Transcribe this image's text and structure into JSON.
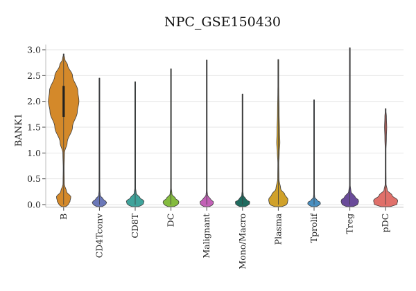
{
  "chart_data": {
    "type": "violin",
    "title": "NPC_GSE150430",
    "ylabel": "BANK1",
    "xlabel": "",
    "ylim": [
      -0.05,
      3.1
    ],
    "yticks": [
      "0.0",
      "0.5",
      "1.0",
      "1.5",
      "2.0",
      "2.5",
      "3.0"
    ],
    "ytick_values": [
      0,
      0.5,
      1.0,
      1.5,
      2.0,
      2.5,
      3.0
    ],
    "grid": true,
    "series": [
      {
        "name": "B",
        "color": "#d4892a",
        "max": 2.92,
        "profile": [
          [
            0,
            0.3
          ],
          [
            0.07,
            0.4
          ],
          [
            0.15,
            0.45
          ],
          [
            0.25,
            0.18
          ],
          [
            0.4,
            0.04
          ],
          [
            0.7,
            0.03
          ],
          [
            1.0,
            0.05
          ],
          [
            1.2,
            0.22
          ],
          [
            1.5,
            0.55
          ],
          [
            1.8,
            0.85
          ],
          [
            2.0,
            0.95
          ],
          [
            2.2,
            0.88
          ],
          [
            2.5,
            0.55
          ],
          [
            2.7,
            0.25
          ],
          [
            2.82,
            0.07
          ],
          [
            2.92,
            0.01
          ]
        ],
        "box": [
          1.7,
          2.3
        ]
      },
      {
        "name": "CD4Tconv",
        "color": "#6a77b8",
        "max": 2.45,
        "profile": [
          [
            0,
            0.4
          ],
          [
            0.05,
            0.45
          ],
          [
            0.1,
            0.25
          ],
          [
            0.18,
            0.05
          ],
          [
            0.3,
            0.015
          ],
          [
            1.0,
            0.008
          ],
          [
            2.45,
            0.004
          ]
        ]
      },
      {
        "name": "CD8T",
        "color": "#3fa39b",
        "max": 2.38,
        "profile": [
          [
            0,
            0.5
          ],
          [
            0.07,
            0.55
          ],
          [
            0.13,
            0.3
          ],
          [
            0.22,
            0.06
          ],
          [
            0.35,
            0.015
          ],
          [
            1.5,
            0.01
          ],
          [
            1.7,
            0.012
          ],
          [
            2.38,
            0.004
          ]
        ]
      },
      {
        "name": "DC",
        "color": "#84bb3e",
        "max": 2.63,
        "profile": [
          [
            0,
            0.45
          ],
          [
            0.06,
            0.5
          ],
          [
            0.12,
            0.28
          ],
          [
            0.2,
            0.06
          ],
          [
            0.35,
            0.015
          ],
          [
            1.0,
            0.008
          ],
          [
            2.63,
            0.004
          ]
        ]
      },
      {
        "name": "Malignant",
        "color": "#c261b6",
        "max": 2.8,
        "profile": [
          [
            0,
            0.4
          ],
          [
            0.05,
            0.42
          ],
          [
            0.11,
            0.22
          ],
          [
            0.18,
            0.05
          ],
          [
            0.3,
            0.012
          ],
          [
            1.5,
            0.006
          ],
          [
            2.8,
            0.003
          ]
        ]
      },
      {
        "name": "Mono/Macro",
        "color": "#1f6b5f",
        "max": 2.14,
        "profile": [
          [
            0,
            0.42
          ],
          [
            0.05,
            0.45
          ],
          [
            0.1,
            0.22
          ],
          [
            0.18,
            0.05
          ],
          [
            0.3,
            0.012
          ],
          [
            1.0,
            0.006
          ],
          [
            2.14,
            0.003
          ]
        ]
      },
      {
        "name": "Plasma",
        "color": "#d0a12a",
        "max": 2.81,
        "profile": [
          [
            0,
            0.55
          ],
          [
            0.1,
            0.6
          ],
          [
            0.2,
            0.4
          ],
          [
            0.3,
            0.15
          ],
          [
            0.5,
            0.04
          ],
          [
            0.8,
            0.03
          ],
          [
            1.0,
            0.06
          ],
          [
            1.2,
            0.1
          ],
          [
            1.4,
            0.08
          ],
          [
            1.8,
            0.05
          ],
          [
            2.2,
            0.03
          ],
          [
            2.5,
            0.01
          ],
          [
            2.81,
            0.003
          ]
        ]
      },
      {
        "name": "Tprolif",
        "color": "#4a8fc0",
        "max": 2.03,
        "profile": [
          [
            0,
            0.38
          ],
          [
            0.04,
            0.4
          ],
          [
            0.08,
            0.2
          ],
          [
            0.14,
            0.04
          ],
          [
            0.25,
            0.01
          ],
          [
            1.0,
            0.005
          ],
          [
            2.03,
            0.003
          ]
        ]
      },
      {
        "name": "Treg",
        "color": "#6a4b9a",
        "max": 3.04,
        "profile": [
          [
            0,
            0.5
          ],
          [
            0.08,
            0.55
          ],
          [
            0.15,
            0.32
          ],
          [
            0.25,
            0.07
          ],
          [
            0.4,
            0.015
          ],
          [
            1.5,
            0.006
          ],
          [
            3.04,
            0.003
          ]
        ]
      },
      {
        "name": "pDC",
        "color": "#e0706a",
        "max": 1.86,
        "profile": [
          [
            0,
            0.7
          ],
          [
            0.08,
            0.75
          ],
          [
            0.18,
            0.4
          ],
          [
            0.28,
            0.1
          ],
          [
            0.4,
            0.03
          ],
          [
            1.0,
            0.02
          ],
          [
            1.3,
            0.05
          ],
          [
            1.5,
            0.07
          ],
          [
            1.7,
            0.05
          ],
          [
            1.86,
            0.01
          ]
        ]
      }
    ]
  }
}
